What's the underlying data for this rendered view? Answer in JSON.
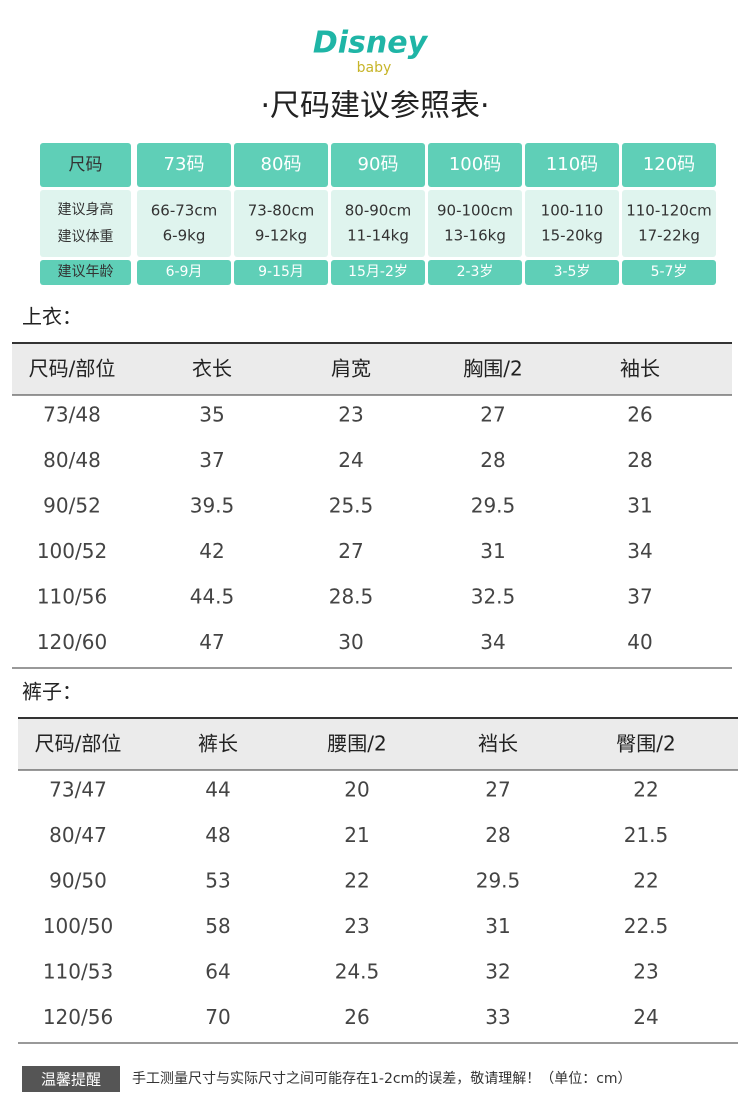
{
  "logo": {
    "brand": "Disney",
    "sub": "baby"
  },
  "title": "·尺码建议参照表·",
  "size_guide": {
    "header_label": "尺码",
    "sizes": [
      "73码",
      "80码",
      "90码",
      "100码",
      "110码",
      "120码"
    ],
    "height_label": "建议身高",
    "weight_label": "建议体重",
    "age_label": "建议年龄",
    "heights": [
      "66-73cm",
      "73-80cm",
      "80-90cm",
      "90-100cm",
      "100-110",
      "110-120cm"
    ],
    "weights": [
      "6-9kg",
      "9-12kg",
      "11-14kg",
      "13-16kg",
      "15-20kg",
      "17-22kg"
    ],
    "ages": [
      "6-9月",
      "9-15月",
      "15月-2岁",
      "2-3岁",
      "3-5岁",
      "5-7岁"
    ]
  },
  "tops": {
    "heading": "上衣：",
    "columns": [
      "尺码/部位",
      "衣长",
      "肩宽",
      "胸围/2",
      "袖长"
    ],
    "rows": [
      [
        "73/48",
        35,
        23,
        27,
        26
      ],
      [
        "80/48",
        37,
        24,
        28,
        28
      ],
      [
        "90/52",
        39.5,
        25.5,
        29.5,
        31
      ],
      [
        "100/52",
        42,
        27,
        31,
        34
      ],
      [
        "110/56",
        44.5,
        28.5,
        32.5,
        37
      ],
      [
        "120/60",
        47,
        30,
        34,
        40
      ]
    ]
  },
  "pants": {
    "heading": "裤子：",
    "columns": [
      "尺码/部位",
      "裤长",
      "腰围/2",
      "裆长",
      "臀围/2"
    ],
    "rows": [
      [
        "73/47",
        44,
        20,
        27,
        22
      ],
      [
        "80/47",
        48,
        21,
        28,
        21.5
      ],
      [
        "90/50",
        53,
        22,
        29.5,
        22
      ],
      [
        "100/50",
        58,
        23,
        31,
        22.5
      ],
      [
        "110/53",
        64,
        24.5,
        32,
        23
      ],
      [
        "120/56",
        70,
        26,
        33,
        24
      ]
    ]
  },
  "footer": {
    "tag": "温馨提醒",
    "note": "手工测量尺寸与实际尺寸之间可能存在1-2cm的误差，敬请理解！（单位：cm）"
  }
}
